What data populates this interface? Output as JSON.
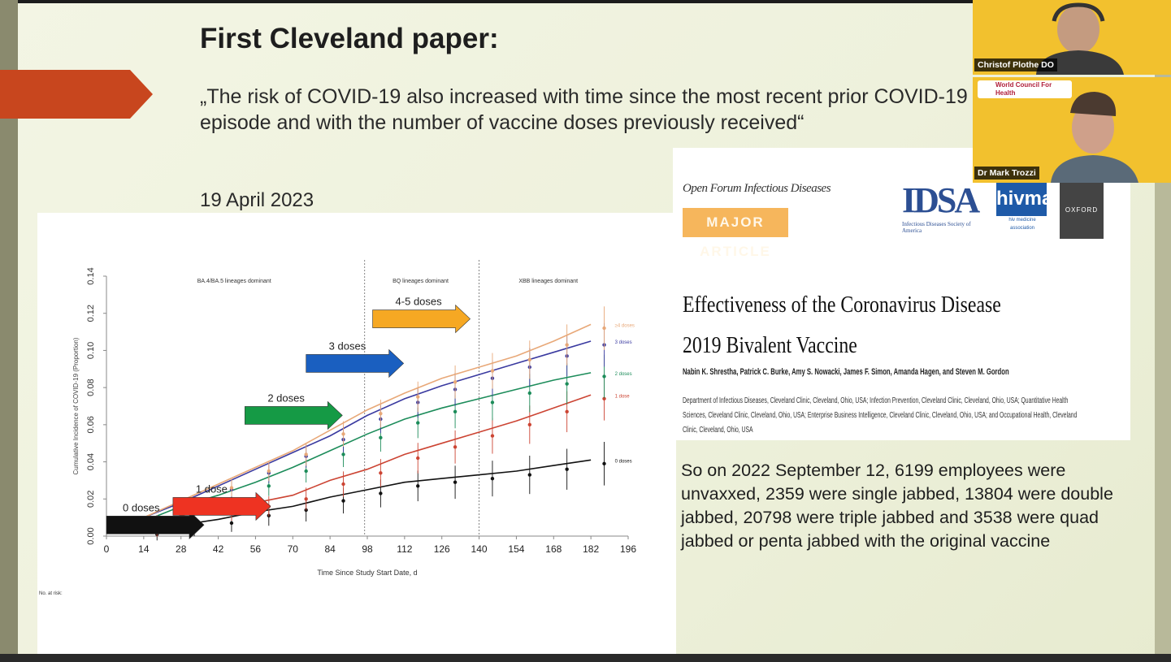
{
  "slide": {
    "title": "First Cleveland paper:",
    "quote": "„The risk of COVID-19 also increased with time since the most recent prior COVID-19 episode and with the number of vaccine doses previously received“",
    "date": "19 April 2023",
    "summary": "So on 2022 September 12, 6199 employees were unvaxxed, 2359 were single jabbed, 13804 were double jabbed, 20798 were triple jabbed and 3538 were quad jabbed or penta jabbed with the original vaccine"
  },
  "paper": {
    "journal": "Open Forum Infectious Diseases",
    "badge": "MAJOR ARTICLE",
    "idsa": "IDSA",
    "idsa_sub": "Infectious Diseases Society of America",
    "hivma": "hivma",
    "hivma_sub": "hiv medicine association",
    "oxford": "OXFORD",
    "title": "Effectiveness of the Coronavirus Disease 2019 Bivalent Vaccine",
    "authors": "Nabin K. Shrestha, Patrick C. Burke, Amy S. Nowacki, James F. Simon, Amanda Hagen, and Steven M. Gordon",
    "affiliations": "Department of Infectious Diseases, Cleveland Clinic, Cleveland, Ohio, USA; Infection Prevention, Cleveland Clinic, Cleveland, Ohio, USA; Quantitative Health Sciences, Cleveland Clinic, Cleveland, Ohio, USA; Enterprise Business Intelligence, Cleveland Clinic, Cleveland, Ohio, USA; and Occupational Health, Cleveland Clinic, Cleveland, Ohio, USA"
  },
  "participants": [
    {
      "name": "Christof Plothe DO",
      "logo": "World Council For Health"
    },
    {
      "name": "Dr Mark Trozzi"
    }
  ],
  "chart_data": {
    "type": "line",
    "ylabel": "Cumulative Incidence of COVID-19 (Proportion)",
    "xlabel": "Time Since Study Start Date, d",
    "xticks": [
      0,
      14,
      28,
      42,
      56,
      70,
      84,
      98,
      112,
      126,
      140,
      154,
      168,
      182,
      196
    ],
    "yticks": [
      "0.00",
      "0.02",
      "0.04",
      "0.06",
      "0.08",
      "0.10",
      "0.12",
      "0.14"
    ],
    "xlim": [
      0,
      196
    ],
    "ylim": [
      0,
      0.14
    ],
    "period_dividers": [
      97,
      140
    ],
    "periods": [
      "BA.4/BA.5 lineages dominant",
      "BQ lineages dominant",
      "XBB lineages dominant"
    ],
    "series": [
      {
        "name": "0 doses",
        "color": "#111111",
        "x": [
          0,
          14,
          28,
          42,
          56,
          70,
          84,
          98,
          112,
          126,
          140,
          154,
          168,
          182
        ],
        "y": [
          0.002,
          0.003,
          0.006,
          0.009,
          0.013,
          0.016,
          0.021,
          0.025,
          0.029,
          0.031,
          0.033,
          0.035,
          0.038,
          0.041
        ]
      },
      {
        "name": "1 dose",
        "color": "#cc4433",
        "x": [
          0,
          14,
          28,
          42,
          56,
          70,
          84,
          98,
          112,
          126,
          140,
          154,
          168,
          182
        ],
        "y": [
          0.002,
          0.005,
          0.011,
          0.015,
          0.018,
          0.022,
          0.03,
          0.036,
          0.044,
          0.05,
          0.056,
          0.062,
          0.069,
          0.076
        ]
      },
      {
        "name": "2 doses",
        "color": "#1c8c5a",
        "x": [
          0,
          14,
          28,
          42,
          56,
          70,
          84,
          98,
          112,
          126,
          140,
          154,
          168,
          182
        ],
        "y": [
          0.002,
          0.008,
          0.016,
          0.022,
          0.029,
          0.037,
          0.046,
          0.055,
          0.063,
          0.069,
          0.074,
          0.079,
          0.084,
          0.088
        ]
      },
      {
        "name": "3 doses",
        "color": "#3a3aa0",
        "x": [
          0,
          14,
          28,
          42,
          56,
          70,
          84,
          98,
          112,
          126,
          140,
          154,
          168,
          182
        ],
        "y": [
          0.002,
          0.01,
          0.018,
          0.027,
          0.036,
          0.045,
          0.054,
          0.065,
          0.074,
          0.081,
          0.087,
          0.093,
          0.099,
          0.105
        ]
      },
      {
        "name": "≥4 doses",
        "color": "#e8a878",
        "x": [
          0,
          14,
          28,
          42,
          56,
          70,
          84,
          98,
          112,
          126,
          140,
          154,
          168,
          182
        ],
        "y": [
          0.002,
          0.01,
          0.019,
          0.028,
          0.037,
          0.046,
          0.057,
          0.068,
          0.077,
          0.085,
          0.091,
          0.097,
          0.105,
          0.114
        ]
      }
    ],
    "annotations": [
      {
        "label": "0 doses",
        "color": "#111111",
        "x": 0,
        "y": 0.006
      },
      {
        "label": "1 dose",
        "color": "#ee3322",
        "x": 25,
        "y": 0.016
      },
      {
        "label": "2 doses",
        "color": "#159a45",
        "x": 52,
        "y": 0.065
      },
      {
        "label": "3 doses",
        "color": "#1a5fc0",
        "x": 75,
        "y": 0.093
      },
      {
        "label": "4-5 doses",
        "color": "#f6a823",
        "x": 100,
        "y": 0.117
      }
    ],
    "risk_table_label": "No. at risk:"
  }
}
